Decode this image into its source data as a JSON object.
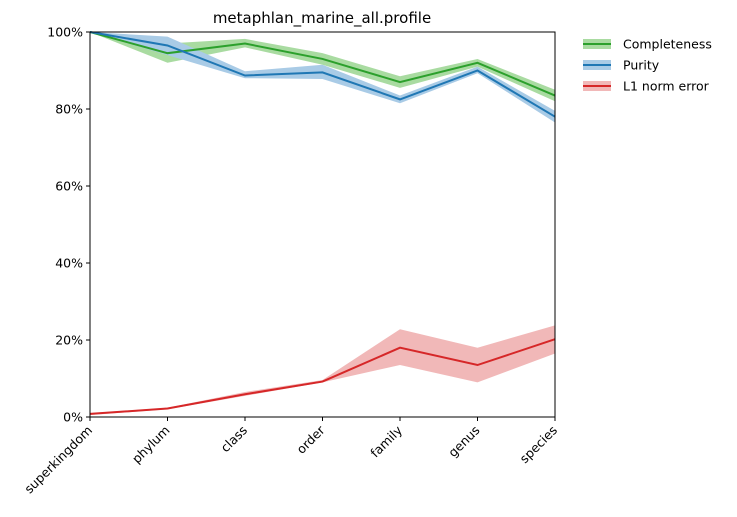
{
  "chart_data": {
    "type": "line",
    "title": "metaphlan_marine_all.profile",
    "xlabel": "",
    "ylabel": "",
    "categories": [
      "superkingdom",
      "phylum",
      "class",
      "order",
      "family",
      "genus",
      "species"
    ],
    "ylim": [
      0,
      100
    ],
    "yticks": [
      "0%",
      "20%",
      "40%",
      "60%",
      "80%",
      "100%"
    ],
    "grid": false,
    "legend_position": "outside-top-right",
    "series": [
      {
        "name": "Completeness",
        "color": "#2ca02c",
        "band_color": "#a9dba1",
        "values": [
          100,
          94.5,
          97,
          93,
          87,
          92,
          83.5
        ],
        "lower": [
          100,
          92,
          96,
          91.5,
          85.5,
          91,
          82
        ],
        "upper": [
          100,
          97,
          98.2,
          94.5,
          88.5,
          93,
          85
        ]
      },
      {
        "name": "Purity",
        "color": "#1f77b4",
        "band_color": "#a9cbe6",
        "values": [
          100,
          96.5,
          88.7,
          89.5,
          82.5,
          90,
          78
        ],
        "lower": [
          100,
          94,
          88,
          87.8,
          81.5,
          89.3,
          76.5
        ],
        "upper": [
          100,
          98.8,
          89.8,
          91.5,
          83.5,
          91,
          79.5
        ]
      },
      {
        "name": "L1 norm error",
        "color": "#d62728",
        "band_color": "#f1b8b8",
        "values": [
          0.8,
          2.2,
          5.9,
          9.2,
          18,
          13.5,
          20.2
        ],
        "lower": [
          0.5,
          2,
          5.5,
          9,
          13.5,
          9,
          16.5
        ],
        "upper": [
          1,
          2.4,
          6.5,
          9.6,
          22.8,
          18,
          23.8
        ]
      }
    ]
  }
}
